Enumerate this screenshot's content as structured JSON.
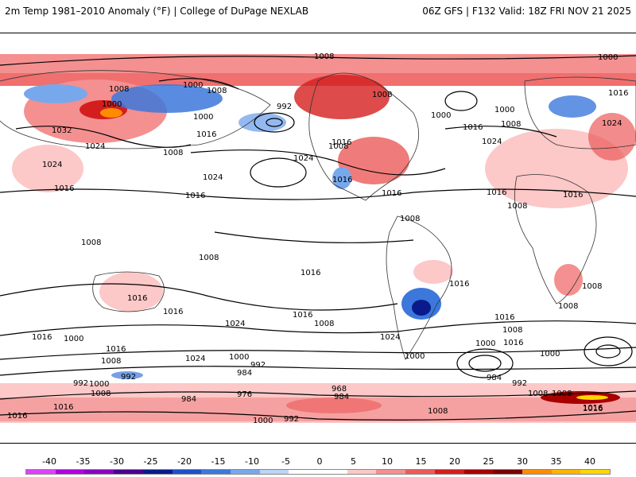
{
  "header": {
    "title_left": "2m Temp 1981–2010 Anomaly (°F) | College of DuPage NEXLAB",
    "title_right": "06Z GFS | F132 Valid: 18Z FRI NOV 21 2025"
  },
  "legend": {
    "ticks": [
      "-40",
      "-35",
      "-30",
      "-25",
      "-20",
      "-15",
      "-10",
      "-5",
      "0",
      "5",
      "10",
      "15",
      "20",
      "25",
      "30",
      "35",
      "40"
    ],
    "colors": [
      "#e040fb",
      "#b000e0",
      "#8a00c0",
      "#4b0090",
      "#0a1a8c",
      "#1e50c8",
      "#3c78dc",
      "#78a8ec",
      "#bcd4f6",
      "#ffffff",
      "#ffffff",
      "#fcc8c8",
      "#f49090",
      "#ec5a5a",
      "#d41e1e",
      "#a80000",
      "#7a0000",
      "#ff8c00",
      "#ffb400",
      "#ffd700"
    ]
  },
  "map": {
    "isobar_labels": [
      {
        "text": "1008",
        "id": "a"
      },
      {
        "text": "1000",
        "id": "b"
      },
      {
        "text": "1008",
        "id": "c"
      },
      {
        "text": "1008",
        "id": "d"
      },
      {
        "text": "1000",
        "id": "e"
      },
      {
        "text": "1000",
        "id": "f"
      },
      {
        "text": "992",
        "id": "g"
      },
      {
        "text": "1008",
        "id": "h"
      },
      {
        "text": "1000",
        "id": "i"
      },
      {
        "text": "1000",
        "id": "j"
      },
      {
        "text": "1016",
        "id": "k"
      },
      {
        "text": "1000",
        "id": "l"
      },
      {
        "text": "1008",
        "id": "m"
      },
      {
        "text": "1016",
        "id": "n"
      },
      {
        "text": "1024",
        "id": "o"
      },
      {
        "text": "1016",
        "id": "p"
      },
      {
        "text": "1024",
        "id": "q"
      },
      {
        "text": "1032",
        "id": "r"
      },
      {
        "text": "1024",
        "id": "s"
      },
      {
        "text": "1008",
        "id": "t"
      },
      {
        "text": "1016",
        "id": "u"
      },
      {
        "text": "1024",
        "id": "v"
      },
      {
        "text": "1024",
        "id": "w"
      },
      {
        "text": "1008",
        "id": "x"
      },
      {
        "text": "1016",
        "id": "y"
      },
      {
        "text": "1016",
        "id": "z"
      },
      {
        "text": "1024",
        "id": "aa"
      },
      {
        "text": "1016",
        "id": "ab"
      },
      {
        "text": "1008",
        "id": "ac"
      },
      {
        "text": "1016",
        "id": "ad"
      },
      {
        "text": "1016",
        "id": "ae"
      },
      {
        "text": "1016",
        "id": "af"
      },
      {
        "text": "1008",
        "id": "ag"
      },
      {
        "text": "1008",
        "id": "ah"
      },
      {
        "text": "1008",
        "id": "ai"
      },
      {
        "text": "1016",
        "id": "aj"
      },
      {
        "text": "1016",
        "id": "ak"
      },
      {
        "text": "1008",
        "id": "al"
      },
      {
        "text": "1016",
        "id": "am"
      },
      {
        "text": "1016",
        "id": "an"
      },
      {
        "text": "1008",
        "id": "ao"
      },
      {
        "text": "1016",
        "id": "ap"
      },
      {
        "text": "1008",
        "id": "aq"
      },
      {
        "text": "1016",
        "id": "ar"
      },
      {
        "text": "1024",
        "id": "as"
      },
      {
        "text": "1016",
        "id": "at"
      },
      {
        "text": "1008",
        "id": "au"
      },
      {
        "text": "1016",
        "id": "av"
      },
      {
        "text": "1000",
        "id": "aw"
      },
      {
        "text": "1016",
        "id": "ax"
      },
      {
        "text": "1008",
        "id": "ay"
      },
      {
        "text": "1000",
        "id": "az"
      },
      {
        "text": "992",
        "id": "ba"
      },
      {
        "text": "984",
        "id": "bb"
      },
      {
        "text": "976",
        "id": "bc"
      },
      {
        "text": "968",
        "id": "bd"
      },
      {
        "text": "984",
        "id": "be"
      },
      {
        "text": "1024",
        "id": "bf"
      },
      {
        "text": "1000",
        "id": "bg"
      },
      {
        "text": "1000",
        "id": "bh"
      },
      {
        "text": "1016",
        "id": "bi"
      },
      {
        "text": "1008",
        "id": "bj"
      },
      {
        "text": "1000",
        "id": "bk"
      },
      {
        "text": "992",
        "id": "bl"
      },
      {
        "text": "984",
        "id": "bm"
      },
      {
        "text": "992",
        "id": "bn"
      },
      {
        "text": "1008",
        "id": "bo"
      },
      {
        "text": "1016",
        "id": "bp"
      },
      {
        "text": "992",
        "id": "bq"
      },
      {
        "text": "1000",
        "id": "br"
      },
      {
        "text": "1008",
        "id": "bs"
      },
      {
        "text": "1016",
        "id": "bt"
      },
      {
        "text": "1024",
        "id": "bu"
      },
      {
        "text": "984",
        "id": "bv"
      },
      {
        "text": "1000",
        "id": "bw"
      },
      {
        "text": "992",
        "id": "bx"
      },
      {
        "text": "1008",
        "id": "by"
      },
      {
        "text": "1016",
        "id": "bz"
      }
    ]
  }
}
